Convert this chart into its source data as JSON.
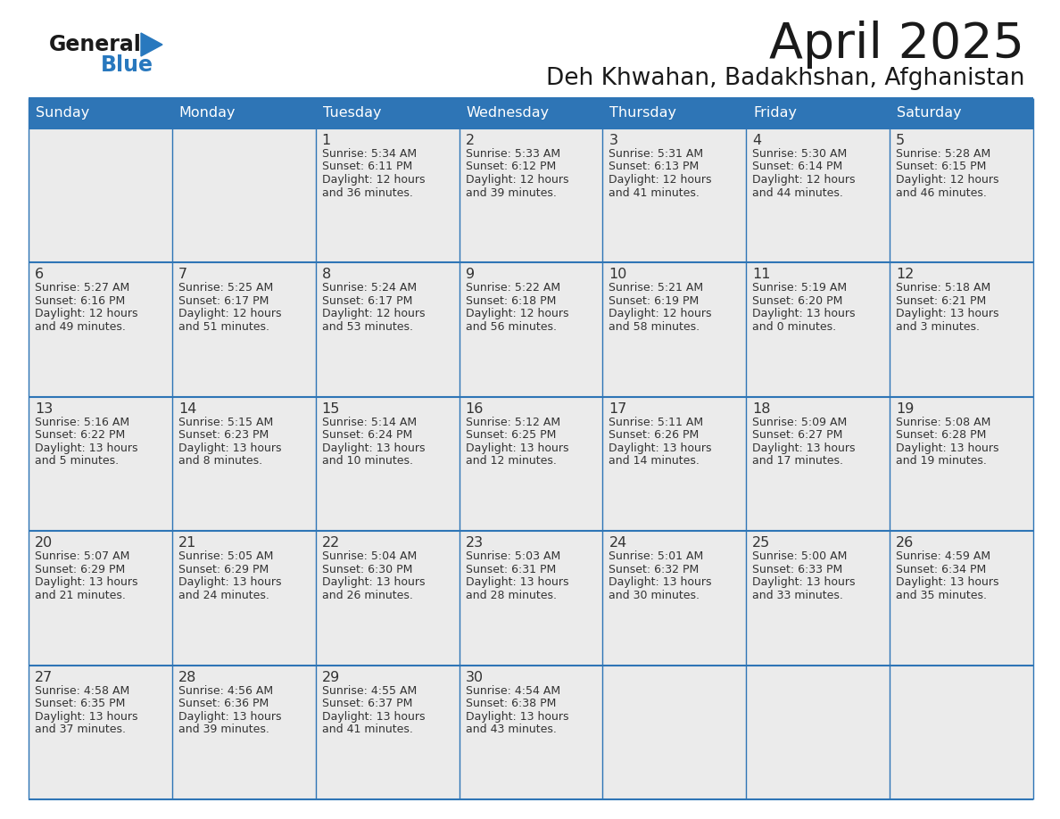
{
  "title": "April 2025",
  "subtitle": "Deh Khwahan, Badakhshan, Afghanistan",
  "header_bg_color": "#2E75B6",
  "header_text_color": "#FFFFFF",
  "cell_bg_color": "#EBEBEB",
  "text_color": "#333333",
  "day_number_color": "#333333",
  "line_color": "#2E75B6",
  "days_of_week": [
    "Sunday",
    "Monday",
    "Tuesday",
    "Wednesday",
    "Thursday",
    "Friday",
    "Saturday"
  ],
  "logo_general_color": "#1A1A1A",
  "logo_blue_color": "#2878BE",
  "weeks": [
    [
      {
        "day": "",
        "sunrise": "",
        "sunset": "",
        "daylight": ""
      },
      {
        "day": "",
        "sunrise": "",
        "sunset": "",
        "daylight": ""
      },
      {
        "day": "1",
        "sunrise": "5:34 AM",
        "sunset": "6:11 PM",
        "daylight": "12 hours\nand 36 minutes."
      },
      {
        "day": "2",
        "sunrise": "5:33 AM",
        "sunset": "6:12 PM",
        "daylight": "12 hours\nand 39 minutes."
      },
      {
        "day": "3",
        "sunrise": "5:31 AM",
        "sunset": "6:13 PM",
        "daylight": "12 hours\nand 41 minutes."
      },
      {
        "day": "4",
        "sunrise": "5:30 AM",
        "sunset": "6:14 PM",
        "daylight": "12 hours\nand 44 minutes."
      },
      {
        "day": "5",
        "sunrise": "5:28 AM",
        "sunset": "6:15 PM",
        "daylight": "12 hours\nand 46 minutes."
      }
    ],
    [
      {
        "day": "6",
        "sunrise": "5:27 AM",
        "sunset": "6:16 PM",
        "daylight": "12 hours\nand 49 minutes."
      },
      {
        "day": "7",
        "sunrise": "5:25 AM",
        "sunset": "6:17 PM",
        "daylight": "12 hours\nand 51 minutes."
      },
      {
        "day": "8",
        "sunrise": "5:24 AM",
        "sunset": "6:17 PM",
        "daylight": "12 hours\nand 53 minutes."
      },
      {
        "day": "9",
        "sunrise": "5:22 AM",
        "sunset": "6:18 PM",
        "daylight": "12 hours\nand 56 minutes."
      },
      {
        "day": "10",
        "sunrise": "5:21 AM",
        "sunset": "6:19 PM",
        "daylight": "12 hours\nand 58 minutes."
      },
      {
        "day": "11",
        "sunrise": "5:19 AM",
        "sunset": "6:20 PM",
        "daylight": "13 hours\nand 0 minutes."
      },
      {
        "day": "12",
        "sunrise": "5:18 AM",
        "sunset": "6:21 PM",
        "daylight": "13 hours\nand 3 minutes."
      }
    ],
    [
      {
        "day": "13",
        "sunrise": "5:16 AM",
        "sunset": "6:22 PM",
        "daylight": "13 hours\nand 5 minutes."
      },
      {
        "day": "14",
        "sunrise": "5:15 AM",
        "sunset": "6:23 PM",
        "daylight": "13 hours\nand 8 minutes."
      },
      {
        "day": "15",
        "sunrise": "5:14 AM",
        "sunset": "6:24 PM",
        "daylight": "13 hours\nand 10 minutes."
      },
      {
        "day": "16",
        "sunrise": "5:12 AM",
        "sunset": "6:25 PM",
        "daylight": "13 hours\nand 12 minutes."
      },
      {
        "day": "17",
        "sunrise": "5:11 AM",
        "sunset": "6:26 PM",
        "daylight": "13 hours\nand 14 minutes."
      },
      {
        "day": "18",
        "sunrise": "5:09 AM",
        "sunset": "6:27 PM",
        "daylight": "13 hours\nand 17 minutes."
      },
      {
        "day": "19",
        "sunrise": "5:08 AM",
        "sunset": "6:28 PM",
        "daylight": "13 hours\nand 19 minutes."
      }
    ],
    [
      {
        "day": "20",
        "sunrise": "5:07 AM",
        "sunset": "6:29 PM",
        "daylight": "13 hours\nand 21 minutes."
      },
      {
        "day": "21",
        "sunrise": "5:05 AM",
        "sunset": "6:29 PM",
        "daylight": "13 hours\nand 24 minutes."
      },
      {
        "day": "22",
        "sunrise": "5:04 AM",
        "sunset": "6:30 PM",
        "daylight": "13 hours\nand 26 minutes."
      },
      {
        "day": "23",
        "sunrise": "5:03 AM",
        "sunset": "6:31 PM",
        "daylight": "13 hours\nand 28 minutes."
      },
      {
        "day": "24",
        "sunrise": "5:01 AM",
        "sunset": "6:32 PM",
        "daylight": "13 hours\nand 30 minutes."
      },
      {
        "day": "25",
        "sunrise": "5:00 AM",
        "sunset": "6:33 PM",
        "daylight": "13 hours\nand 33 minutes."
      },
      {
        "day": "26",
        "sunrise": "4:59 AM",
        "sunset": "6:34 PM",
        "daylight": "13 hours\nand 35 minutes."
      }
    ],
    [
      {
        "day": "27",
        "sunrise": "4:58 AM",
        "sunset": "6:35 PM",
        "daylight": "13 hours\nand 37 minutes."
      },
      {
        "day": "28",
        "sunrise": "4:56 AM",
        "sunset": "6:36 PM",
        "daylight": "13 hours\nand 39 minutes."
      },
      {
        "day": "29",
        "sunrise": "4:55 AM",
        "sunset": "6:37 PM",
        "daylight": "13 hours\nand 41 minutes."
      },
      {
        "day": "30",
        "sunrise": "4:54 AM",
        "sunset": "6:38 PM",
        "daylight": "13 hours\nand 43 minutes."
      },
      {
        "day": "",
        "sunrise": "",
        "sunset": "",
        "daylight": ""
      },
      {
        "day": "",
        "sunrise": "",
        "sunset": "",
        "daylight": ""
      },
      {
        "day": "",
        "sunrise": "",
        "sunset": "",
        "daylight": ""
      }
    ]
  ]
}
